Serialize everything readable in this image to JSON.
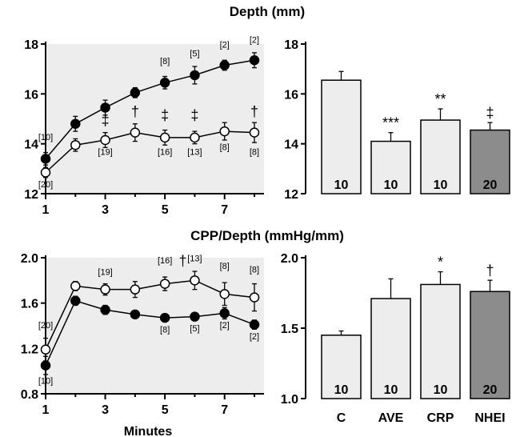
{
  "chart_data": [
    {
      "id": "depth-line",
      "type": "line",
      "section_title": "Depth (mm)",
      "x": [
        1,
        2,
        3,
        4,
        5,
        6,
        7,
        8
      ],
      "xticks": [
        1,
        3,
        5,
        7
      ],
      "xtick_labels": [
        "1",
        "3",
        "5",
        "7"
      ],
      "xlabel": "",
      "ylim": [
        12,
        18
      ],
      "yticks": [
        12,
        14,
        16,
        18
      ],
      "ytick_labels": [
        "12",
        "14",
        "16",
        "18"
      ],
      "background": "#ededed",
      "series": [
        {
          "name": "filled",
          "marker": "filled",
          "values": [
            13.4,
            14.8,
            15.45,
            16.05,
            16.45,
            16.75,
            17.15,
            17.35
          ],
          "err": [
            0.25,
            0.3,
            0.3,
            0.2,
            0.25,
            0.35,
            0.2,
            0.3
          ]
        },
        {
          "name": "open",
          "marker": "open",
          "values": [
            12.85,
            13.95,
            14.15,
            14.45,
            14.25,
            14.25,
            14.5,
            14.45
          ],
          "err": [
            0.2,
            0.25,
            0.3,
            0.35,
            0.3,
            0.25,
            0.35,
            0.4
          ]
        }
      ],
      "annotations": [
        {
          "text": "[10]",
          "x": 1,
          "y": 14.15
        },
        {
          "text": "[20]",
          "x": 1,
          "y": 12.25
        },
        {
          "text": "[19]",
          "x": 3,
          "y": 13.55
        },
        {
          "text": "[16]",
          "x": 5,
          "y": 13.55
        },
        {
          "text": "[13]",
          "x": 6,
          "y": 13.55
        },
        {
          "text": "[8]",
          "x": 7,
          "y": 13.75
        },
        {
          "text": "[8]",
          "x": 8,
          "y": 13.55
        },
        {
          "text": "[8]",
          "x": 5,
          "y": 17.2
        },
        {
          "text": "[5]",
          "x": 6,
          "y": 17.5
        },
        {
          "text": "[2]",
          "x": 7,
          "y": 17.85
        },
        {
          "text": "[2]",
          "x": 8,
          "y": 18.05
        }
      ],
      "symbols": [
        {
          "text": "‡",
          "x": 3,
          "y": 14.75
        },
        {
          "text": "†",
          "x": 4,
          "y": 15.1
        },
        {
          "text": "‡",
          "x": 5,
          "y": 14.95
        },
        {
          "text": "‡",
          "x": 6,
          "y": 14.95
        },
        {
          "text": "†",
          "x": 8,
          "y": 15.1
        }
      ]
    },
    {
      "id": "depth-bar",
      "type": "bar",
      "categories": [
        "C",
        "AVE",
        "CRP",
        "NHEI"
      ],
      "values": [
        16.55,
        14.1,
        14.95,
        14.55
      ],
      "err": [
        0.35,
        0.35,
        0.45,
        0.3
      ],
      "ylim": [
        12,
        18
      ],
      "yticks": [
        12,
        14,
        16,
        18
      ],
      "ytick_labels": [
        "12",
        "14",
        "16",
        "18"
      ],
      "n_labels": [
        "10",
        "10",
        "10",
        "20"
      ],
      "sig": [
        "",
        "***",
        "**",
        "‡"
      ],
      "colors": [
        "#ededed",
        "#ededed",
        "#ededed",
        "#8c8c8c"
      ]
    },
    {
      "id": "cpp-line",
      "type": "line",
      "section_title": "CPP/Depth (mmHg/mm)",
      "x": [
        1,
        2,
        3,
        4,
        5,
        6,
        7,
        8
      ],
      "xticks": [
        1,
        3,
        5,
        7
      ],
      "xtick_labels": [
        "1",
        "3",
        "5",
        "7"
      ],
      "xlabel": "Minutes",
      "ylim": [
        0.8,
        2.0
      ],
      "yticks": [
        0.8,
        1.2,
        1.6,
        2.0
      ],
      "ytick_labels": [
        "0.8",
        "1.2",
        "1.6",
        "2.0"
      ],
      "background": "#ededed",
      "series": [
        {
          "name": "filled",
          "marker": "filled",
          "values": [
            1.05,
            1.62,
            1.54,
            1.5,
            1.47,
            1.48,
            1.51,
            1.41
          ],
          "err": [
            0.08,
            0.04,
            0.04,
            0.02,
            0.02,
            0.02,
            0.05,
            0.04
          ]
        },
        {
          "name": "open",
          "marker": "open",
          "values": [
            1.19,
            1.75,
            1.72,
            1.72,
            1.77,
            1.8,
            1.68,
            1.65
          ],
          "err": [
            0.1,
            0.04,
            0.05,
            0.07,
            0.06,
            0.08,
            0.1,
            0.12
          ]
        }
      ],
      "annotations": [
        {
          "text": "[20]",
          "x": 1,
          "y": 1.38
        },
        {
          "text": "[10]",
          "x": 1,
          "y": 0.89
        },
        {
          "text": "[19]",
          "x": 3,
          "y": 1.85
        },
        {
          "text": "[16]",
          "x": 5,
          "y": 1.95
        },
        {
          "text": "[13]",
          "x": 6,
          "y": 1.97
        },
        {
          "text": "[8]",
          "x": 7,
          "y": 1.9
        },
        {
          "text": "[8]",
          "x": 8,
          "y": 1.87
        },
        {
          "text": "[8]",
          "x": 5,
          "y": 1.34
        },
        {
          "text": "[5]",
          "x": 6,
          "y": 1.35
        },
        {
          "text": "[2]",
          "x": 7,
          "y": 1.38
        },
        {
          "text": "[2]",
          "x": 8,
          "y": 1.28
        }
      ],
      "symbols": [
        {
          "text": "†",
          "x": 5.6,
          "y": 1.93
        }
      ]
    },
    {
      "id": "cpp-bar",
      "type": "bar",
      "categories": [
        "C",
        "AVE",
        "CRP",
        "NHEI"
      ],
      "xtick_labels": [
        "C",
        "AVE",
        "CRP",
        "NHEI"
      ],
      "values": [
        1.45,
        1.71,
        1.81,
        1.76
      ],
      "err": [
        0.03,
        0.14,
        0.09,
        0.08
      ],
      "ylim": [
        1.0,
        2.0
      ],
      "yticks": [
        1.0,
        1.5,
        2.0
      ],
      "ytick_labels": [
        "1.0",
        "1.5",
        "2.0"
      ],
      "n_labels": [
        "10",
        "10",
        "10",
        "20"
      ],
      "sig": [
        "",
        "",
        "*",
        "†"
      ],
      "colors": [
        "#ededed",
        "#ededed",
        "#ededed",
        "#8c8c8c"
      ]
    }
  ]
}
